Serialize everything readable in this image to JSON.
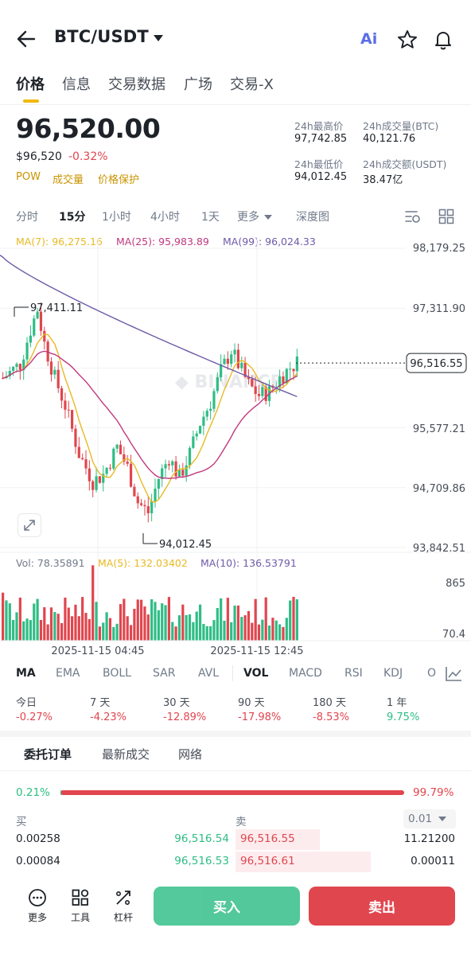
{
  "header": {
    "pair": "BTC/USDT",
    "ai_label": "Ai"
  },
  "tabs": [
    "价格",
    "信息",
    "交易数据",
    "广场",
    "交易-X"
  ],
  "price": {
    "last": "96,520.00",
    "usd": "$96,520",
    "change": "-0.32%",
    "badges": [
      "POW",
      "成交量",
      "价格保护"
    ]
  },
  "stats": {
    "high_label": "24h最高价",
    "high": "97,742.85",
    "vol_label": "24h成交量(BTC)",
    "vol": "40,121.76",
    "low_label": "24h最低价",
    "low": "94,012.45",
    "amount_label": "24h成交额(USDT)",
    "amount": "38.47亿"
  },
  "intervals": [
    "分时",
    "15分",
    "1小时",
    "4小时",
    "1天",
    "更多",
    "深度图"
  ],
  "ma_legend": {
    "ma7": "MA(7): 96,275.16",
    "ma25": "MA(25): 95,983.89",
    "ma99": "MA(99): 96,024.33"
  },
  "vol_legend": {
    "vol": "Vol: 78.35891",
    "ma5": "MA(5): 132.03402",
    "ma10": "MA(10): 136.53791"
  },
  "colors": {
    "up": "#2ebd85",
    "down": "#e0464e",
    "ma7": "#e8b923",
    "ma25": "#c0387f",
    "ma99": "#6f5aa8",
    "accent": "#f0b90b"
  },
  "chart_data": {
    "type": "candlestick",
    "y_ticks": [
      "98,179.25",
      "97,311.90",
      "96,516.55",
      "95,577.21",
      "94,709.86",
      "93,842.51"
    ],
    "last_price_tag": "96,516.55",
    "high_marker": "97,411.11",
    "low_marker": "94,012.45",
    "x_ticks": [
      "2025-11-15 04:45",
      "2025-11-15 12:45"
    ],
    "vol_ticks": [
      "865",
      "70.4"
    ],
    "ylim": [
      93842.51,
      98179.25
    ]
  },
  "indicators": [
    "MA",
    "EMA",
    "BOLL",
    "SAR",
    "AVL",
    "VOL",
    "MACD",
    "RSI",
    "KDJ",
    "O"
  ],
  "periods": [
    {
      "label": "今日",
      "value": "-0.27%",
      "dir": "down"
    },
    {
      "label": "7 天",
      "value": "-4.23%",
      "dir": "down"
    },
    {
      "label": "30 天",
      "value": "-12.89%",
      "dir": "down"
    },
    {
      "label": "90 天",
      "value": "-17.98%",
      "dir": "down"
    },
    {
      "label": "180 天",
      "value": "-8.53%",
      "dir": "down"
    },
    {
      "label": "1 年",
      "value": "9.75%",
      "dir": "up"
    }
  ],
  "order_tabs": [
    "委托订单",
    "最新成交",
    "网络"
  ],
  "ratio": {
    "buy": "0.21%",
    "sell": "99.79%",
    "buy_fraction": 0.0021
  },
  "orderbook": {
    "bid_label": "买",
    "ask_label": "卖",
    "precision": "0.01",
    "rows": [
      {
        "bid_qty": "0.00258",
        "bid_price": "96,516.54",
        "ask_price": "96,516.55",
        "ask_qty": "11.21200"
      },
      {
        "bid_qty": "0.00084",
        "bid_price": "96,516.53",
        "ask_price": "96,516.61",
        "ask_qty": "0.00011"
      }
    ]
  },
  "bottom": {
    "more": "更多",
    "tools": "工具",
    "leverage": "杠杆",
    "buy": "买入",
    "sell": "卖出"
  }
}
